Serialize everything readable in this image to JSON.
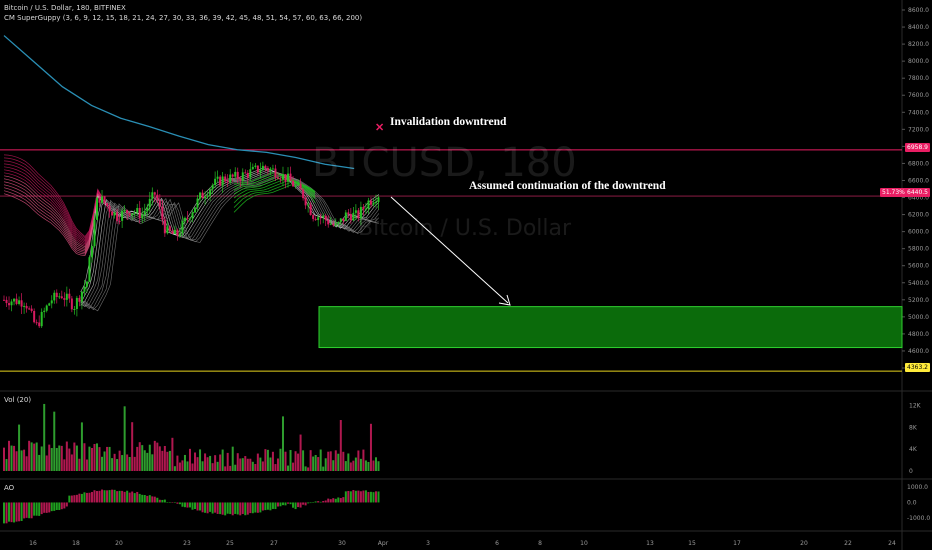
{
  "header": {
    "symbol_line": "Bitcoin / U.S. Dollar, 180, BITFINEX",
    "indicator_line": "CM SuperGuppy (3, 6, 9, 12, 15, 18, 21, 24, 27, 30, 33, 36, 39, 42, 45, 48, 51, 54, 57, 60, 63, 66, 200)"
  },
  "watermark": {
    "ticker": "BTCUSD, 180",
    "name": "Bitcoin / U.S. Dollar"
  },
  "annotations": {
    "invalidation": "Invalidation downtrend",
    "continuation": "Assumed continuation of the downtrend",
    "invalidation_marker": "✕"
  },
  "price_axis": {
    "ticks": [
      "8600.0",
      "8400.0",
      "8200.0",
      "8000.0",
      "7800.0",
      "7600.0",
      "7400.0",
      "7200.0",
      "7000.0",
      "6800.0",
      "6600.0",
      "6400.0",
      "6200.0",
      "6000.0",
      "5800.0",
      "5600.0",
      "5400.0",
      "5200.0",
      "5000.0",
      "4800.0",
      "4600.0",
      "4400.0"
    ],
    "labels": {
      "upper_line": "6958.9",
      "current_pct": "51.73%",
      "current_price": "6440.5",
      "support": "4363.2"
    }
  },
  "volume_panel": {
    "label": "Vol (20)",
    "ticks": [
      "12K",
      "8K",
      "4K",
      "0"
    ]
  },
  "ao_panel": {
    "label": "AO",
    "ticks": [
      "1000.0",
      "0.0",
      "-1000.0"
    ]
  },
  "time_axis": {
    "labels": [
      "16",
      "18",
      "20",
      "23",
      "25",
      "27",
      "30",
      "Apr",
      "3",
      "6",
      "8",
      "10",
      "13",
      "15",
      "17",
      "20",
      "22",
      "24"
    ]
  },
  "chart_data": {
    "type": "line",
    "title": "Bitcoin / U.S. Dollar, 180, BITFINEX",
    "price_range": [
      4400,
      8600
    ],
    "levels": {
      "upper_line": 6958.9,
      "current_price": 6440.5,
      "support": 4363.2
    },
    "target_zone": [
      4640,
      5120
    ],
    "ma200": [
      [
        0,
        8300
      ],
      [
        2,
        8000
      ],
      [
        4,
        7700
      ],
      [
        6,
        7480
      ],
      [
        8,
        7330
      ],
      [
        10,
        7230
      ],
      [
        12,
        7120
      ],
      [
        14,
        7020
      ],
      [
        16,
        6960
      ],
      [
        18,
        6930
      ],
      [
        20,
        6870
      ],
      [
        22,
        6790
      ],
      [
        24,
        6740
      ]
    ],
    "close": [
      [
        0,
        5200
      ],
      [
        1,
        5180
      ],
      [
        1.5,
        4880
      ],
      [
        2.2,
        5200
      ],
      [
        2.7,
        5260
      ],
      [
        3.3,
        5130
      ],
      [
        3.9,
        5420
      ],
      [
        4.4,
        6420
      ],
      [
        5.3,
        6180
      ],
      [
        5.9,
        6250
      ],
      [
        6.5,
        6200
      ],
      [
        7.1,
        6450
      ],
      [
        7.6,
        6000
      ],
      [
        8.1,
        5950
      ],
      [
        8.7,
        6200
      ],
      [
        9.2,
        6400
      ],
      [
        9.8,
        6550
      ],
      [
        10.3,
        6620
      ],
      [
        11,
        6640
      ],
      [
        11.6,
        6700
      ],
      [
        12.2,
        6760
      ],
      [
        12.8,
        6700
      ],
      [
        13.4,
        6600
      ],
      [
        14,
        6450
      ],
      [
        14.5,
        6200
      ],
      [
        15,
        6160
      ],
      [
        15.6,
        6050
      ],
      [
        16.1,
        6210
      ],
      [
        16.6,
        6180
      ],
      [
        17.1,
        6350
      ],
      [
        17.6,
        6440
      ]
    ],
    "volume_scale_max": 13000,
    "ao_range": [
      -1400,
      1200
    ]
  }
}
